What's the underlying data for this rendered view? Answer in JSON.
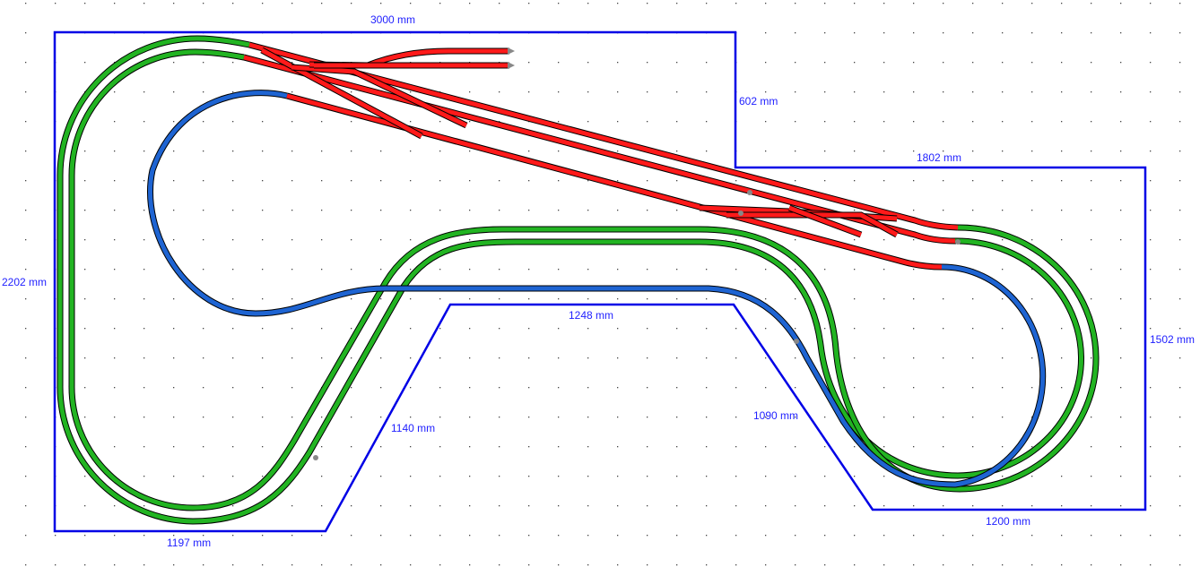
{
  "colors": {
    "board": "#0000e6",
    "dimension_text": "#1f1fff",
    "track_green": "#22b422",
    "track_red": "#ff1a1a",
    "track_blue": "#1e64d2",
    "grid_dot": "#444444"
  },
  "dimensions": {
    "top": "3000 mm",
    "notch_depth": "602 mm",
    "right_top": "1802 mm",
    "left": "2202 mm",
    "right": "1502 mm",
    "inner_top": "1248 mm",
    "inner_left_diag": "1140 mm",
    "inner_right_diag": "1090 mm",
    "bottom_left": "1197 mm",
    "bottom_right": "1200 mm"
  }
}
